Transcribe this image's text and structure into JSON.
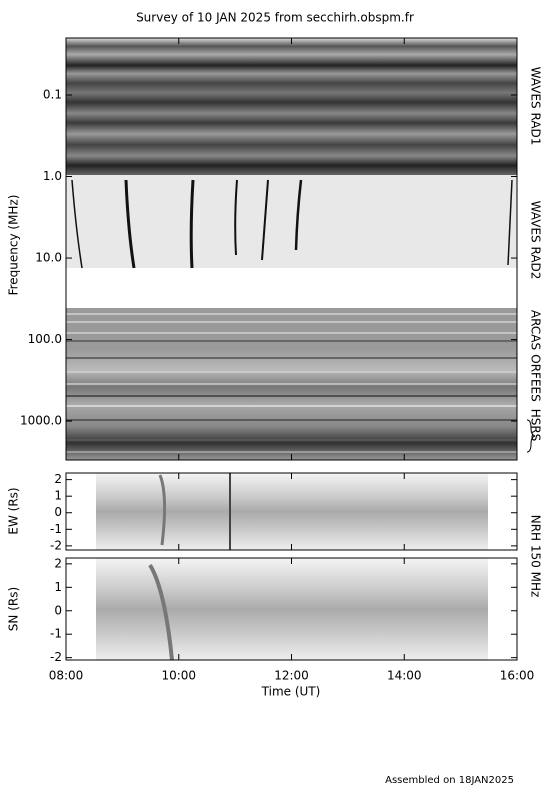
{
  "title": "Survey of 10 JAN 2025 from secchirh.obspm.fr",
  "footer": "Assembled on 18JAN2025",
  "x_axis": {
    "label": "Time (UT)",
    "xlim": [
      8,
      16
    ],
    "xticks": [
      {
        "value": 8,
        "label": "08:00"
      },
      {
        "value": 10,
        "label": "10:00"
      },
      {
        "value": 12,
        "label": "12:00"
      },
      {
        "value": 14,
        "label": "14:00"
      },
      {
        "value": 16,
        "label": "16:00"
      }
    ]
  },
  "panels": [
    {
      "label": "Frequency (MHz)",
      "scale": "log",
      "inverted": true,
      "ylim": [
        0.02,
        3000
      ],
      "yticks": [
        0.1,
        {
          "value": 1,
          "label": "1.0"
        },
        {
          "value": 10,
          "label": "10.0"
        },
        {
          "value": 100,
          "label": "100.0"
        },
        {
          "value": 1000,
          "label": "1000.0"
        }
      ]
    },
    {
      "label": "EW (Rs)",
      "scale": "linear",
      "ylim": [
        -2.25,
        2.4
      ],
      "yticks": [
        -2,
        -1,
        0,
        1,
        2
      ]
    },
    {
      "label": "SN (Rs)",
      "scale": "linear",
      "ylim": [
        -2.1,
        2.25
      ],
      "yticks": [
        -2,
        -1,
        0,
        1,
        2
      ]
    }
  ],
  "bands": [
    "WAVES RAD1",
    "WAVES RAD2",
    "ARCAS",
    "ORFEES",
    "HSRS"
  ],
  "instrument": "NRH 150 MHz"
}
